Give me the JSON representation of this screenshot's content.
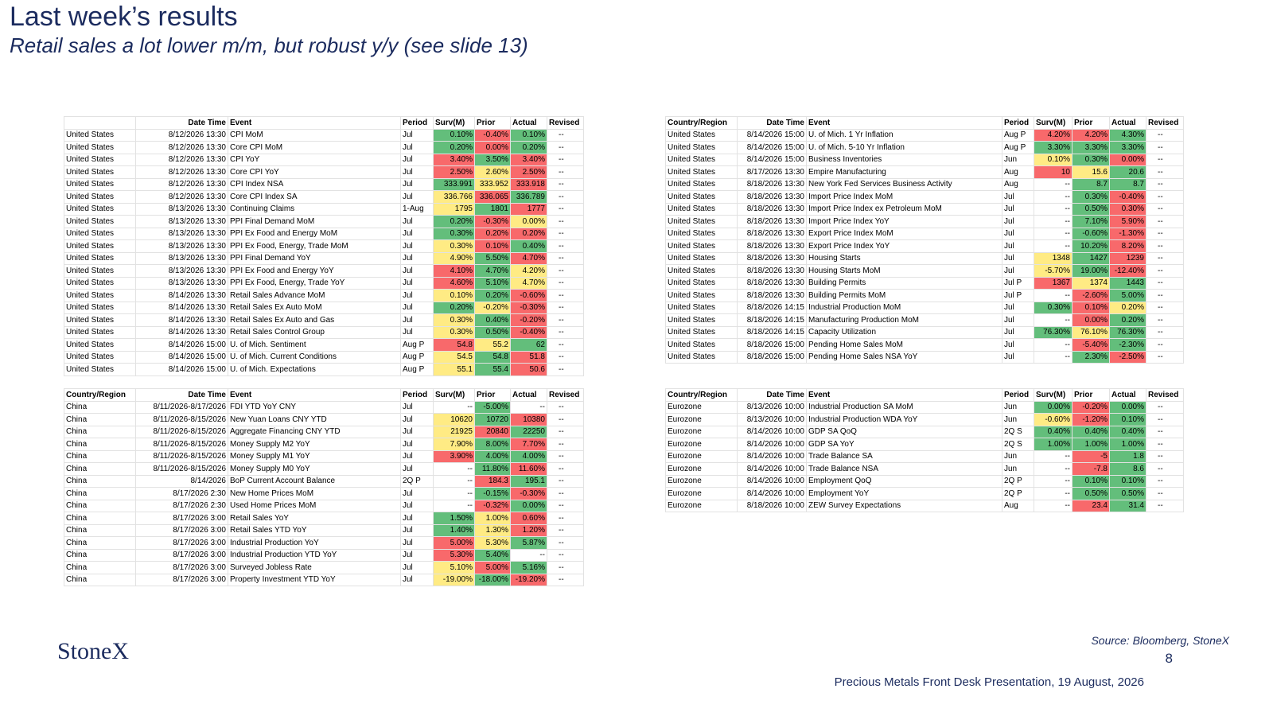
{
  "header": {
    "title": "Last week’s results",
    "subtitle": "Retail sales a lot lower m/m, but robust y/y (see slide 13)"
  },
  "tables": [
    {
      "columns": [
        "",
        "Date Time",
        "Event",
        "Period",
        "Surv(M)",
        "Prior",
        "Actual",
        "Revised"
      ],
      "rows": [
        [
          "United States",
          "8/12/2026 13:30",
          "CPI MoM",
          "Jul",
          "0.10%",
          "-0.40%",
          "0.10%",
          "--"
        ],
        [
          "United States",
          "8/12/2026 13:30",
          "Core CPI MoM",
          "Jul",
          "0.20%",
          "0.00%",
          "0.20%",
          "--"
        ],
        [
          "United States",
          "8/12/2026 13:30",
          "CPI YoY",
          "Jul",
          "3.40%",
          "3.50%",
          "3.40%",
          "--"
        ],
        [
          "United States",
          "8/12/2026 13:30",
          "Core CPI YoY",
          "Jul",
          "2.50%",
          "2.60%",
          "2.50%",
          "--"
        ],
        [
          "United States",
          "8/12/2026 13:30",
          "CPI Index NSA",
          "Jul",
          "333.991",
          "333.952",
          "333.918",
          "--"
        ],
        [
          "United States",
          "8/12/2026 13:30",
          "Core CPI Index SA",
          "Jul",
          "336.766",
          "336.065",
          "336.789",
          "--"
        ],
        [
          "United States",
          "8/13/2026 13:30",
          "Continuing Claims",
          "1-Aug",
          "1795",
          "1801",
          "1777",
          "--"
        ],
        [
          "United States",
          "8/13/2026 13:30",
          "PPI Final Demand MoM",
          "Jul",
          "0.20%",
          "-0.30%",
          "0.00%",
          "--"
        ],
        [
          "United States",
          "8/13/2026 13:30",
          "PPI Ex Food and Energy MoM",
          "Jul",
          "0.30%",
          "0.20%",
          "0.20%",
          "--"
        ],
        [
          "United States",
          "8/13/2026 13:30",
          "PPI Ex Food, Energy, Trade MoM",
          "Jul",
          "0.30%",
          "0.10%",
          "0.40%",
          "--"
        ],
        [
          "United States",
          "8/13/2026 13:30",
          "PPI Final Demand YoY",
          "Jul",
          "4.90%",
          "5.50%",
          "4.70%",
          "--"
        ],
        [
          "United States",
          "8/13/2026 13:30",
          "PPI Ex Food and Energy YoY",
          "Jul",
          "4.10%",
          "4.70%",
          "4.20%",
          "--"
        ],
        [
          "United States",
          "8/13/2026 13:30",
          "PPI Ex Food, Energy, Trade YoY",
          "Jul",
          "4.60%",
          "5.10%",
          "4.70%",
          "--"
        ],
        [
          "United States",
          "8/14/2026 13:30",
          "Retail Sales Advance MoM",
          "Jul",
          "0.10%",
          "0.20%",
          "-0.60%",
          "--"
        ],
        [
          "United States",
          "8/14/2026 13:30",
          "Retail Sales Ex Auto MoM",
          "Jul",
          "0.20%",
          "-0.20%",
          "-0.30%",
          "--"
        ],
        [
          "United States",
          "8/14/2026 13:30",
          "Retail Sales Ex Auto and Gas",
          "Jul",
          "0.30%",
          "0.40%",
          "-0.20%",
          "--"
        ],
        [
          "United States",
          "8/14/2026 13:30",
          "Retail Sales Control Group",
          "Jul",
          "0.30%",
          "0.50%",
          "-0.40%",
          "--"
        ],
        [
          "United States",
          "8/14/2026 15:00",
          "U. of Mich. Sentiment",
          "Aug P",
          "54.8",
          "55.2",
          "62",
          "--"
        ],
        [
          "United States",
          "8/14/2026 15:00",
          "U. of Mich. Current Conditions",
          "Aug P",
          "54.5",
          "54.8",
          "51.8",
          "--"
        ],
        [
          "United States",
          "8/14/2026 15:00",
          "U. of Mich. Expectations",
          "Aug P",
          "55.1",
          "55.4",
          "50.6",
          "--"
        ]
      ],
      "fills": [
        [
          "#63be7b",
          "#f8696b",
          "#63be7b"
        ],
        [
          "#63be7b",
          "#f8696b",
          "#63be7b"
        ],
        [
          "#f8696b",
          "#63be7b",
          "#f8696b"
        ],
        [
          "#f8696b",
          "#ffeb84",
          "#f8696b"
        ],
        [
          "#63be7b",
          "#ffeb84",
          "#f8696b"
        ],
        [
          "#ffeb84",
          "#f8696b",
          "#63be7b"
        ],
        [
          "#ffeb84",
          "#63be7b",
          "#f8696b"
        ],
        [
          "#63be7b",
          "#f8696b",
          "#ffeb84"
        ],
        [
          "#63be7b",
          "#f8696b",
          "#f8696b"
        ],
        [
          "#ffeb84",
          "#f8696b",
          "#63be7b"
        ],
        [
          "#ffeb84",
          "#63be7b",
          "#f8696b"
        ],
        [
          "#f8696b",
          "#63be7b",
          "#ffeb84"
        ],
        [
          "#f8696b",
          "#63be7b",
          "#ffeb84"
        ],
        [
          "#ffeb84",
          "#63be7b",
          "#f8696b"
        ],
        [
          "#63be7b",
          "#ffeb84",
          "#f8696b"
        ],
        [
          "#ffeb84",
          "#63be7b",
          "#f8696b"
        ],
        [
          "#ffeb84",
          "#63be7b",
          "#f8696b"
        ],
        [
          "#f8696b",
          "#ffeb84",
          "#63be7b"
        ],
        [
          "#ffeb84",
          "#63be7b",
          "#f8696b"
        ],
        [
          "#ffeb84",
          "#63be7b",
          "#f8696b"
        ]
      ]
    },
    {
      "columns": [
        "Country/Region",
        "Date Time",
        "Event",
        "Period",
        "Surv(M)",
        "Prior",
        "Actual",
        "Revised"
      ],
      "rows": [
        [
          "United States",
          "8/14/2026 15:00",
          "U. of Mich. 1 Yr Inflation",
          "Aug P",
          "4.20%",
          "4.20%",
          "4.30%",
          "--"
        ],
        [
          "United States",
          "8/14/2026 15:00",
          "U. of Mich. 5-10 Yr Inflation",
          "Aug P",
          "3.30%",
          "3.30%",
          "3.30%",
          "--"
        ],
        [
          "United States",
          "8/14/2026 15:00",
          "Business Inventories",
          "Jun",
          "0.10%",
          "0.30%",
          "0.00%",
          "--"
        ],
        [
          "United States",
          "8/17/2026 13:30",
          "Empire Manufacturing",
          "Aug",
          "10",
          "15.6",
          "20.6",
          "--"
        ],
        [
          "United States",
          "8/18/2026 13:30",
          "New York Fed Services Business Activity",
          "Aug",
          "--",
          "8.7",
          "8.7",
          "--"
        ],
        [
          "United States",
          "8/18/2026 13:30",
          "Import Price Index MoM",
          "Jul",
          "--",
          "0.30%",
          "-0.40%",
          "--"
        ],
        [
          "United States",
          "8/18/2026 13:30",
          "Import Price Index ex Petroleum MoM",
          "Jul",
          "--",
          "0.50%",
          "0.30%",
          "--"
        ],
        [
          "United States",
          "8/18/2026 13:30",
          "Import Price Index YoY",
          "Jul",
          "--",
          "7.10%",
          "5.90%",
          "--"
        ],
        [
          "United States",
          "8/18/2026 13:30",
          "Export Price Index MoM",
          "Jul",
          "--",
          "-0.60%",
          "-1.30%",
          "--"
        ],
        [
          "United States",
          "8/18/2026 13:30",
          "Export Price Index YoY",
          "Jul",
          "--",
          "10.20%",
          "8.20%",
          "--"
        ],
        [
          "United States",
          "8/18/2026 13:30",
          "Housing Starts",
          "Jul",
          "1348",
          "1427",
          "1239",
          "--"
        ],
        [
          "United States",
          "8/18/2026 13:30",
          "Housing Starts MoM",
          "Jul",
          "-5.70%",
          "19.00%",
          "-12.40%",
          "--"
        ],
        [
          "United States",
          "8/18/2026 13:30",
          "Building Permits",
          "Jul P",
          "1367",
          "1374",
          "1443",
          "--"
        ],
        [
          "United States",
          "8/18/2026 13:30",
          "Building Permits MoM",
          "Jul P",
          "--",
          "-2.60%",
          "5.00%",
          "--"
        ],
        [
          "United States",
          "8/18/2026 14:15",
          "Industrial Production MoM",
          "Jul",
          "0.30%",
          "0.10%",
          "0.20%",
          "--"
        ],
        [
          "United States",
          "8/18/2026 14:15",
          "Manufacturing Production MoM",
          "Jul",
          "--",
          "0.00%",
          "0.20%",
          "--"
        ],
        [
          "United States",
          "8/18/2026 14:15",
          "Capacity Utilization",
          "Jul",
          "76.30%",
          "76.10%",
          "76.30%",
          "--"
        ],
        [
          "United States",
          "8/18/2026 15:00",
          "Pending Home Sales MoM",
          "Jul",
          "--",
          "-5.40%",
          "-2.30%",
          "--"
        ],
        [
          "United States",
          "8/18/2026 15:00",
          "Pending Home Sales NSA YoY",
          "Jul",
          "--",
          "2.30%",
          "-2.50%",
          "--"
        ]
      ],
      "fills": [
        [
          "#f8696b",
          "#f8696b",
          "#63be7b"
        ],
        [
          "#63be7b",
          "#63be7b",
          "#63be7b"
        ],
        [
          "#ffeb84",
          "#63be7b",
          "#f8696b"
        ],
        [
          "#f8696b",
          "#ffeb84",
          "#63be7b"
        ],
        [
          null,
          "#63be7b",
          "#63be7b"
        ],
        [
          null,
          "#63be7b",
          "#f8696b"
        ],
        [
          null,
          "#63be7b",
          "#f8696b"
        ],
        [
          null,
          "#63be7b",
          "#f8696b"
        ],
        [
          null,
          "#63be7b",
          "#f8696b"
        ],
        [
          null,
          "#63be7b",
          "#f8696b"
        ],
        [
          "#ffeb84",
          "#63be7b",
          "#f8696b"
        ],
        [
          "#ffeb84",
          "#63be7b",
          "#f8696b"
        ],
        [
          "#f8696b",
          "#ffeb84",
          "#63be7b"
        ],
        [
          null,
          "#f8696b",
          "#63be7b"
        ],
        [
          "#63be7b",
          "#f8696b",
          "#ffeb84"
        ],
        [
          null,
          "#f8696b",
          "#63be7b"
        ],
        [
          "#63be7b",
          "#ffeb84",
          "#63be7b"
        ],
        [
          null,
          "#f8696b",
          "#63be7b"
        ],
        [
          null,
          "#63be7b",
          "#f8696b"
        ]
      ]
    },
    {
      "columns": [
        "Country/Region",
        "Date Time",
        "Event",
        "Period",
        "Surv(M)",
        "Prior",
        "Actual",
        "Revised"
      ],
      "rows": [
        [
          "China",
          "8/11/2026-8/17/2026",
          "FDI YTD YoY CNY",
          "Jul",
          "--",
          "-5.00%",
          "--",
          "--"
        ],
        [
          "China",
          "8/11/2026-8/15/2026",
          "New Yuan Loans CNY YTD",
          "Jul",
          "10620",
          "10720",
          "10380",
          "--"
        ],
        [
          "China",
          "8/11/2026-8/15/2026",
          "Aggregate Financing CNY YTD",
          "Jul",
          "21925",
          "20840",
          "22250",
          "--"
        ],
        [
          "China",
          "8/11/2026-8/15/2026",
          "Money Supply M2 YoY",
          "Jul",
          "7.90%",
          "8.00%",
          "7.70%",
          "--"
        ],
        [
          "China",
          "8/11/2026-8/15/2026",
          "Money Supply M1 YoY",
          "Jul",
          "3.90%",
          "4.00%",
          "4.00%",
          "--"
        ],
        [
          "China",
          "8/11/2026-8/15/2026",
          "Money Supply M0 YoY",
          "Jul",
          "--",
          "11.80%",
          "11.60%",
          "--"
        ],
        [
          "China",
          "8/14/2026",
          "BoP Current Account Balance",
          "2Q P",
          "--",
          "184.3",
          "195.1",
          "--"
        ],
        [
          "China",
          "8/17/2026 2:30",
          "New Home Prices MoM",
          "Jul",
          "--",
          "-0.15%",
          "-0.30%",
          "--"
        ],
        [
          "China",
          "8/17/2026 2:30",
          "Used Home Prices MoM",
          "Jul",
          "--",
          "-0.32%",
          "0.00%",
          "--"
        ],
        [
          "China",
          "8/17/2026 3:00",
          "Retail Sales YoY",
          "Jul",
          "1.50%",
          "1.00%",
          "0.60%",
          "--"
        ],
        [
          "China",
          "8/17/2026 3:00",
          "Retail Sales YTD YoY",
          "Jul",
          "1.40%",
          "1.30%",
          "1.20%",
          "--"
        ],
        [
          "China",
          "8/17/2026 3:00",
          "Industrial Production YoY",
          "Jul",
          "5.00%",
          "5.30%",
          "5.87%",
          "--"
        ],
        [
          "China",
          "8/17/2026 3:00",
          "Industrial Production YTD YoY",
          "Jul",
          "5.30%",
          "5.40%",
          "--",
          "--"
        ],
        [
          "China",
          "8/17/2026 3:00",
          "Surveyed Jobless Rate",
          "Jul",
          "5.10%",
          "5.00%",
          "5.16%",
          "--"
        ],
        [
          "China",
          "8/17/2026 3:00",
          "Property Investment YTD YoY",
          "Jul",
          "-19.00%",
          "-18.00%",
          "-19.20%",
          "--"
        ]
      ],
      "fills": [
        [
          null,
          "#63be7b",
          null
        ],
        [
          "#ffeb84",
          "#63be7b",
          "#f8696b"
        ],
        [
          "#ffeb84",
          "#f8696b",
          "#63be7b"
        ],
        [
          "#ffeb84",
          "#63be7b",
          "#f8696b"
        ],
        [
          "#f8696b",
          "#63be7b",
          "#63be7b"
        ],
        [
          null,
          "#63be7b",
          "#f8696b"
        ],
        [
          null,
          "#f8696b",
          "#63be7b"
        ],
        [
          null,
          "#63be7b",
          "#f8696b"
        ],
        [
          null,
          "#f8696b",
          "#63be7b"
        ],
        [
          "#63be7b",
          "#ffeb84",
          "#f8696b"
        ],
        [
          "#63be7b",
          "#ffeb84",
          "#f8696b"
        ],
        [
          "#f8696b",
          "#ffeb84",
          "#63be7b"
        ],
        [
          "#f8696b",
          "#63be7b",
          null
        ],
        [
          "#ffeb84",
          "#f8696b",
          "#63be7b"
        ],
        [
          "#ffeb84",
          "#63be7b",
          "#f8696b"
        ]
      ]
    },
    {
      "columns": [
        "Country/Region",
        "Date Time",
        "Event",
        "Period",
        "Surv(M)",
        "Prior",
        "Actual",
        "Revised"
      ],
      "rows": [
        [
          "Eurozone",
          "8/13/2026 10:00",
          "Industrial Production SA MoM",
          "Jun",
          "0.00%",
          "-0.20%",
          "0.00%",
          "--"
        ],
        [
          "Eurozone",
          "8/13/2026 10:00",
          "Industrial Production WDA YoY",
          "Jun",
          "-0.60%",
          "-1.20%",
          "0.10%",
          "--"
        ],
        [
          "Eurozone",
          "8/14/2026 10:00",
          "GDP SA QoQ",
          "2Q S",
          "0.40%",
          "0.40%",
          "0.40%",
          "--"
        ],
        [
          "Eurozone",
          "8/14/2026 10:00",
          "GDP SA YoY",
          "2Q S",
          "1.00%",
          "1.00%",
          "1.00%",
          "--"
        ],
        [
          "Eurozone",
          "8/14/2026 10:00",
          "Trade Balance SA",
          "Jun",
          "--",
          "-5",
          "1.8",
          "--"
        ],
        [
          "Eurozone",
          "8/14/2026 10:00",
          "Trade Balance NSA",
          "Jun",
          "--",
          "-7.8",
          "8.6",
          "--"
        ],
        [
          "Eurozone",
          "8/14/2026 10:00",
          "Employment QoQ",
          "2Q P",
          "--",
          "0.10%",
          "0.10%",
          "--"
        ],
        [
          "Eurozone",
          "8/14/2026 10:00",
          "Employment YoY",
          "2Q P",
          "--",
          "0.50%",
          "0.50%",
          "--"
        ],
        [
          "Eurozone",
          "8/18/2026 10:00",
          "ZEW Survey Expectations",
          "Aug",
          "--",
          "23.4",
          "31.4",
          "--"
        ]
      ],
      "fills": [
        [
          "#63be7b",
          "#f8696b",
          "#63be7b"
        ],
        [
          "#ffeb84",
          "#f8696b",
          "#63be7b"
        ],
        [
          "#63be7b",
          "#63be7b",
          "#63be7b"
        ],
        [
          "#63be7b",
          "#63be7b",
          "#63be7b"
        ],
        [
          null,
          "#f8696b",
          "#63be7b"
        ],
        [
          null,
          "#f8696b",
          "#63be7b"
        ],
        [
          null,
          "#63be7b",
          "#63be7b"
        ],
        [
          null,
          "#63be7b",
          "#63be7b"
        ],
        [
          null,
          "#f8696b",
          "#63be7b"
        ]
      ]
    }
  ],
  "footer": {
    "logo": "StoneX",
    "source": "Source: Bloomberg, StoneX",
    "page": "8",
    "note": "Precious Metals Front Desk Presentation, 19 August, 2026"
  }
}
